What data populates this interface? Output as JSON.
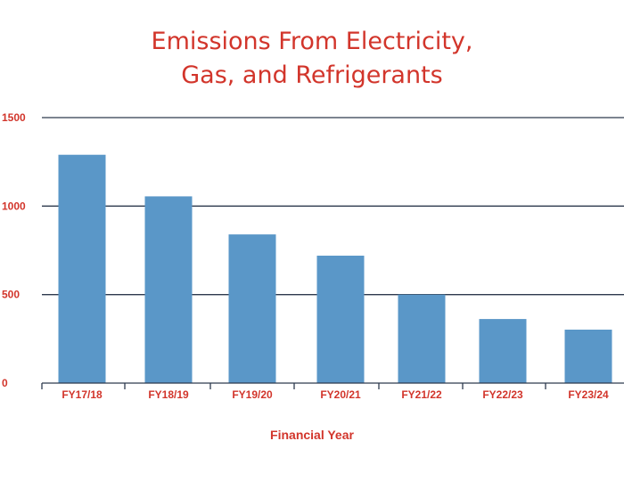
{
  "title_lines": [
    "Emissions From Electricity,",
    "Gas, and Refrigerants"
  ],
  "colors": {
    "title": "#d2352b",
    "bar": "#5a97c8",
    "grid": "#2e3a4e"
  },
  "chart_data": {
    "type": "bar",
    "title": "Emissions From Electricity, Gas, and Refrigerants",
    "xlabel": "Financial Year",
    "ylabel": "",
    "categories": [
      "FY17/18",
      "FY18/19",
      "FY19/20",
      "FY20/21",
      "FY21/22",
      "FY22/23",
      "FY23/24"
    ],
    "values": [
      1290,
      1055,
      840,
      720,
      500,
      362,
      302
    ],
    "ylim": [
      0,
      1500
    ],
    "yticks": [
      0,
      500,
      1000,
      1500
    ],
    "grid": true,
    "legend": "none"
  }
}
